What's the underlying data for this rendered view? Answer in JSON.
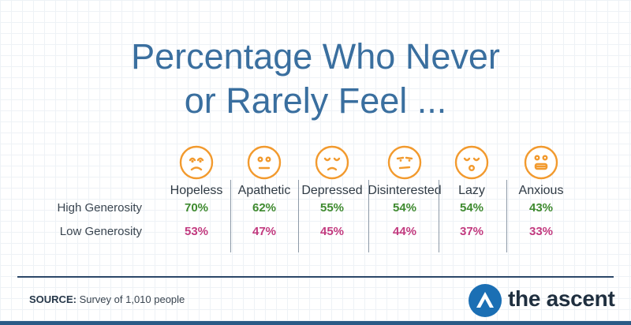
{
  "title_line1": "Percentage Who Never",
  "title_line2": "or Rarely Feel ...",
  "chart_data": {
    "type": "table",
    "title": "Percentage Who Never or Rarely Feel ...",
    "categories": [
      "Hopeless",
      "Apathetic",
      "Depressed",
      "Disinterested",
      "Lazy",
      "Anxious"
    ],
    "icons": [
      "worried-face-icon",
      "neutral-face-icon",
      "sad-face-icon",
      "unamused-face-icon",
      "sleepy-face-icon",
      "grimacing-face-icon"
    ],
    "series": [
      {
        "name": "High Generosity",
        "values": [
          70,
          62,
          55,
          54,
          54,
          43
        ],
        "labels": [
          "70%",
          "62%",
          "55%",
          "54%",
          "54%",
          "43%"
        ],
        "color": "#3f8a2f"
      },
      {
        "name": "Low Generosity",
        "values": [
          53,
          47,
          45,
          44,
          37,
          33
        ],
        "labels": [
          "53%",
          "47%",
          "45%",
          "44%",
          "37%",
          "33%"
        ],
        "color": "#c23a7f"
      }
    ]
  },
  "source": {
    "label": "SOURCE:",
    "text": "Survey of 1,010 people"
  },
  "brand": {
    "name": "the ascent",
    "color": "#1b6fb4"
  },
  "colors": {
    "title": "#3a6f9f",
    "icon_stroke": "#f29a2e",
    "rule": "#2c4868"
  }
}
